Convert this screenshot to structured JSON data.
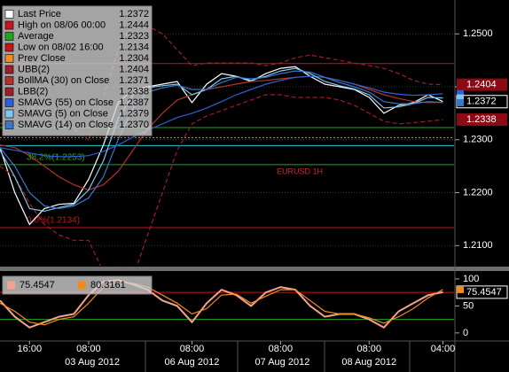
{
  "chart_data": [
    {
      "type": "line",
      "annotation": "EURUSD 1H",
      "x": [
        0,
        4,
        8,
        12,
        16,
        20,
        24,
        28,
        32,
        36,
        40,
        44,
        48,
        52,
        56,
        60,
        64,
        68,
        72,
        76,
        80,
        84,
        88,
        92,
        96,
        100,
        104,
        108,
        112,
        116,
        120
      ],
      "xlim": [
        0,
        123
      ],
      "ylim": [
        1.2062,
        1.2564
      ],
      "yticks": [
        {
          "value": 1.21,
          "label": "1.2100"
        },
        {
          "value": 1.22,
          "label": "1.2200"
        },
        {
          "value": 1.23,
          "label": "1.2300"
        },
        {
          "value": 1.24,
          "label": "1.2400"
        },
        {
          "value": 1.25,
          "label": "1.2500"
        }
      ],
      "grid": true,
      "series": [
        {
          "name": "Last Price",
          "last_label": "1.2372",
          "color": "#ffffff",
          "tag": true,
          "tag_color": "#000000",
          "values": [
            1.2285,
            1.22,
            1.214,
            1.217,
            1.2178,
            1.218,
            1.2225,
            1.229,
            1.237,
            1.2395,
            1.24,
            1.2405,
            1.241,
            1.237,
            1.2405,
            1.2425,
            1.242,
            1.241,
            1.2425,
            1.2435,
            1.2438,
            1.242,
            1.2405,
            1.24,
            1.2395,
            1.238,
            1.235,
            1.2365,
            1.237,
            1.2385,
            1.2372
          ]
        },
        {
          "name": "UBB(2)",
          "last_label": "1.2404",
          "color": "#a01e28",
          "dash": true,
          "tag": true,
          "tag_color": "#8b0a14",
          "values": [
            1.233,
            1.234,
            1.236,
            1.236,
            1.234,
            1.232,
            1.23,
            1.238,
            1.247,
            1.252,
            1.2515,
            1.25,
            1.247,
            1.244,
            1.2445,
            1.2445,
            1.2445,
            1.2445,
            1.244,
            1.2445,
            1.2455,
            1.246,
            1.2455,
            1.245,
            1.2445,
            1.244,
            1.2435,
            1.2425,
            1.2412,
            1.2405,
            1.2404
          ]
        },
        {
          "name": "BollMA (30) on Close",
          "last_label": "1.2371",
          "color": "#b4322d",
          "values": [
            1.229,
            1.2285,
            1.227,
            1.225,
            1.223,
            1.2215,
            1.2205,
            1.2215,
            1.224,
            1.228,
            1.232,
            1.235,
            1.2375,
            1.2385,
            1.2395,
            1.24,
            1.2405,
            1.241,
            1.2412,
            1.2415,
            1.2418,
            1.242,
            1.2418,
            1.2412,
            1.2405,
            1.2395,
            1.2385,
            1.2378,
            1.2372,
            1.237,
            1.2371
          ]
        },
        {
          "name": "LBB(2)",
          "last_label": "1.2338",
          "color": "#a01e28",
          "dash": true,
          "tag": true,
          "tag_color": "#8b0a14",
          "values": [
            1.225,
            1.223,
            1.218,
            1.214,
            1.212,
            1.211,
            1.211,
            1.205,
            1.202,
            1.204,
            1.212,
            1.22,
            1.228,
            1.233,
            1.2345,
            1.2355,
            1.2365,
            1.2375,
            1.2385,
            1.2385,
            1.238,
            1.238,
            1.238,
            1.2375,
            1.2365,
            1.235,
            1.2335,
            1.233,
            1.2332,
            1.2335,
            1.2338
          ]
        },
        {
          "name": "SMAVG (55) on Close",
          "last_label": "1.2387",
          "color": "#2e5fd8",
          "values": [
            1.2285,
            1.228,
            1.2275,
            1.227,
            1.2268,
            1.2268,
            1.227,
            1.2278,
            1.229,
            1.2305,
            1.2318,
            1.233,
            1.2342,
            1.235,
            1.236,
            1.2372,
            1.2385,
            1.2395,
            1.2405,
            1.2412,
            1.2418,
            1.242,
            1.2418,
            1.2412,
            1.2405,
            1.2398,
            1.239,
            1.2386,
            1.2384,
            1.2385,
            1.2387
          ]
        },
        {
          "name": "SMAVG (5) on Close",
          "last_label": "1.2379",
          "color": "#7ec8f0",
          "values": [
            1.228,
            1.223,
            1.217,
            1.2165,
            1.2172,
            1.2178,
            1.2205,
            1.226,
            1.234,
            1.2385,
            1.2398,
            1.2402,
            1.2405,
            1.2385,
            1.2395,
            1.2415,
            1.242,
            1.2412,
            1.242,
            1.243,
            1.2435,
            1.2425,
            1.241,
            1.2402,
            1.2396,
            1.2385,
            1.236,
            1.2362,
            1.2368,
            1.238,
            1.2379
          ]
        },
        {
          "name": "SMAVG (14) on Close",
          "last_label": "1.2370",
          "color": "#3a78c8",
          "values": [
            1.2285,
            1.225,
            1.22,
            1.2175,
            1.217,
            1.2175,
            1.219,
            1.223,
            1.23,
            1.236,
            1.239,
            1.2398,
            1.2403,
            1.2395,
            1.2395,
            1.2408,
            1.2418,
            1.2415,
            1.2418,
            1.2425,
            1.243,
            1.2428,
            1.2418,
            1.2408,
            1.24,
            1.239,
            1.2372,
            1.2368,
            1.2368,
            1.2372,
            1.237
          ]
        }
      ],
      "levels": [
        {
          "name": "High on 08/06 00:00",
          "value": 1.2444,
          "value_label": "1.2444",
          "color": "#c8141e"
        },
        {
          "name": "Average",
          "value": 1.2323,
          "value_label": "1.2323",
          "color": "#1fa81f"
        },
        {
          "name": "Low on 08/02 16:00",
          "value": 1.2134,
          "value_label": "1.2134",
          "color": "#c8141e"
        },
        {
          "name": "Prev Close",
          "value": 1.2304,
          "value_label": "1.2304",
          "color": "#f08c1e",
          "dash": true
        }
      ],
      "fib_levels": [
        {
          "value": 1.2289,
          "color": "#28c8d2"
        },
        {
          "value": 1.2253,
          "label": "38.2%(1.2253)",
          "color": "#1fa81f"
        },
        {
          "value": 1.2134,
          "label": "0.0%(1.2134)",
          "color": "#c8141e"
        }
      ]
    },
    {
      "type": "line",
      "x": [
        0,
        4,
        8,
        12,
        16,
        20,
        24,
        28,
        32,
        36,
        40,
        44,
        48,
        52,
        56,
        60,
        64,
        68,
        72,
        76,
        80,
        84,
        88,
        92,
        96,
        100,
        104,
        108,
        112,
        116,
        120
      ],
      "xlim": [
        0,
        123
      ],
      "ylim": [
        -15,
        113
      ],
      "yticks": [
        0,
        50,
        100
      ],
      "xticks": [
        {
          "value": 8,
          "label": "16:00"
        },
        {
          "value": 24,
          "label": "08:00"
        },
        {
          "value": 52,
          "label": "08:00"
        },
        {
          "value": 76,
          "label": "08:00"
        },
        {
          "value": 100,
          "label": "08:00"
        },
        {
          "value": 120,
          "label": "04:00"
        }
      ],
      "date_labels": [
        {
          "value": 25,
          "label": "03 Aug 2012"
        },
        {
          "value": 52,
          "label": "06 Aug 2012"
        },
        {
          "value": 76.5,
          "label": "07 Aug 2012"
        },
        {
          "value": 100,
          "label": "08 Aug 2012"
        }
      ],
      "series": [
        {
          "last_label": "75.4547",
          "color": "#f5a38f",
          "tag": true,
          "tag_color": "#000000",
          "values": [
            60,
            30,
            10,
            20,
            30,
            35,
            70,
            95,
            98,
            90,
            80,
            60,
            50,
            20,
            55,
            80,
            70,
            50,
            75,
            85,
            80,
            50,
            30,
            35,
            35,
            25,
            10,
            40,
            55,
            70,
            75.4547
          ]
        },
        {
          "last_label": "80.3161",
          "color": "#f08c1e",
          "values": [
            55,
            40,
            20,
            15,
            25,
            30,
            55,
            85,
            95,
            92,
            85,
            70,
            55,
            35,
            45,
            70,
            72,
            55,
            68,
            80,
            80,
            60,
            40,
            35,
            35,
            28,
            18,
            30,
            45,
            65,
            80.3161
          ]
        }
      ],
      "levels": [
        {
          "value": 75,
          "color": "#c8141e"
        },
        {
          "value": 25,
          "color": "#1fa81f"
        }
      ]
    }
  ]
}
